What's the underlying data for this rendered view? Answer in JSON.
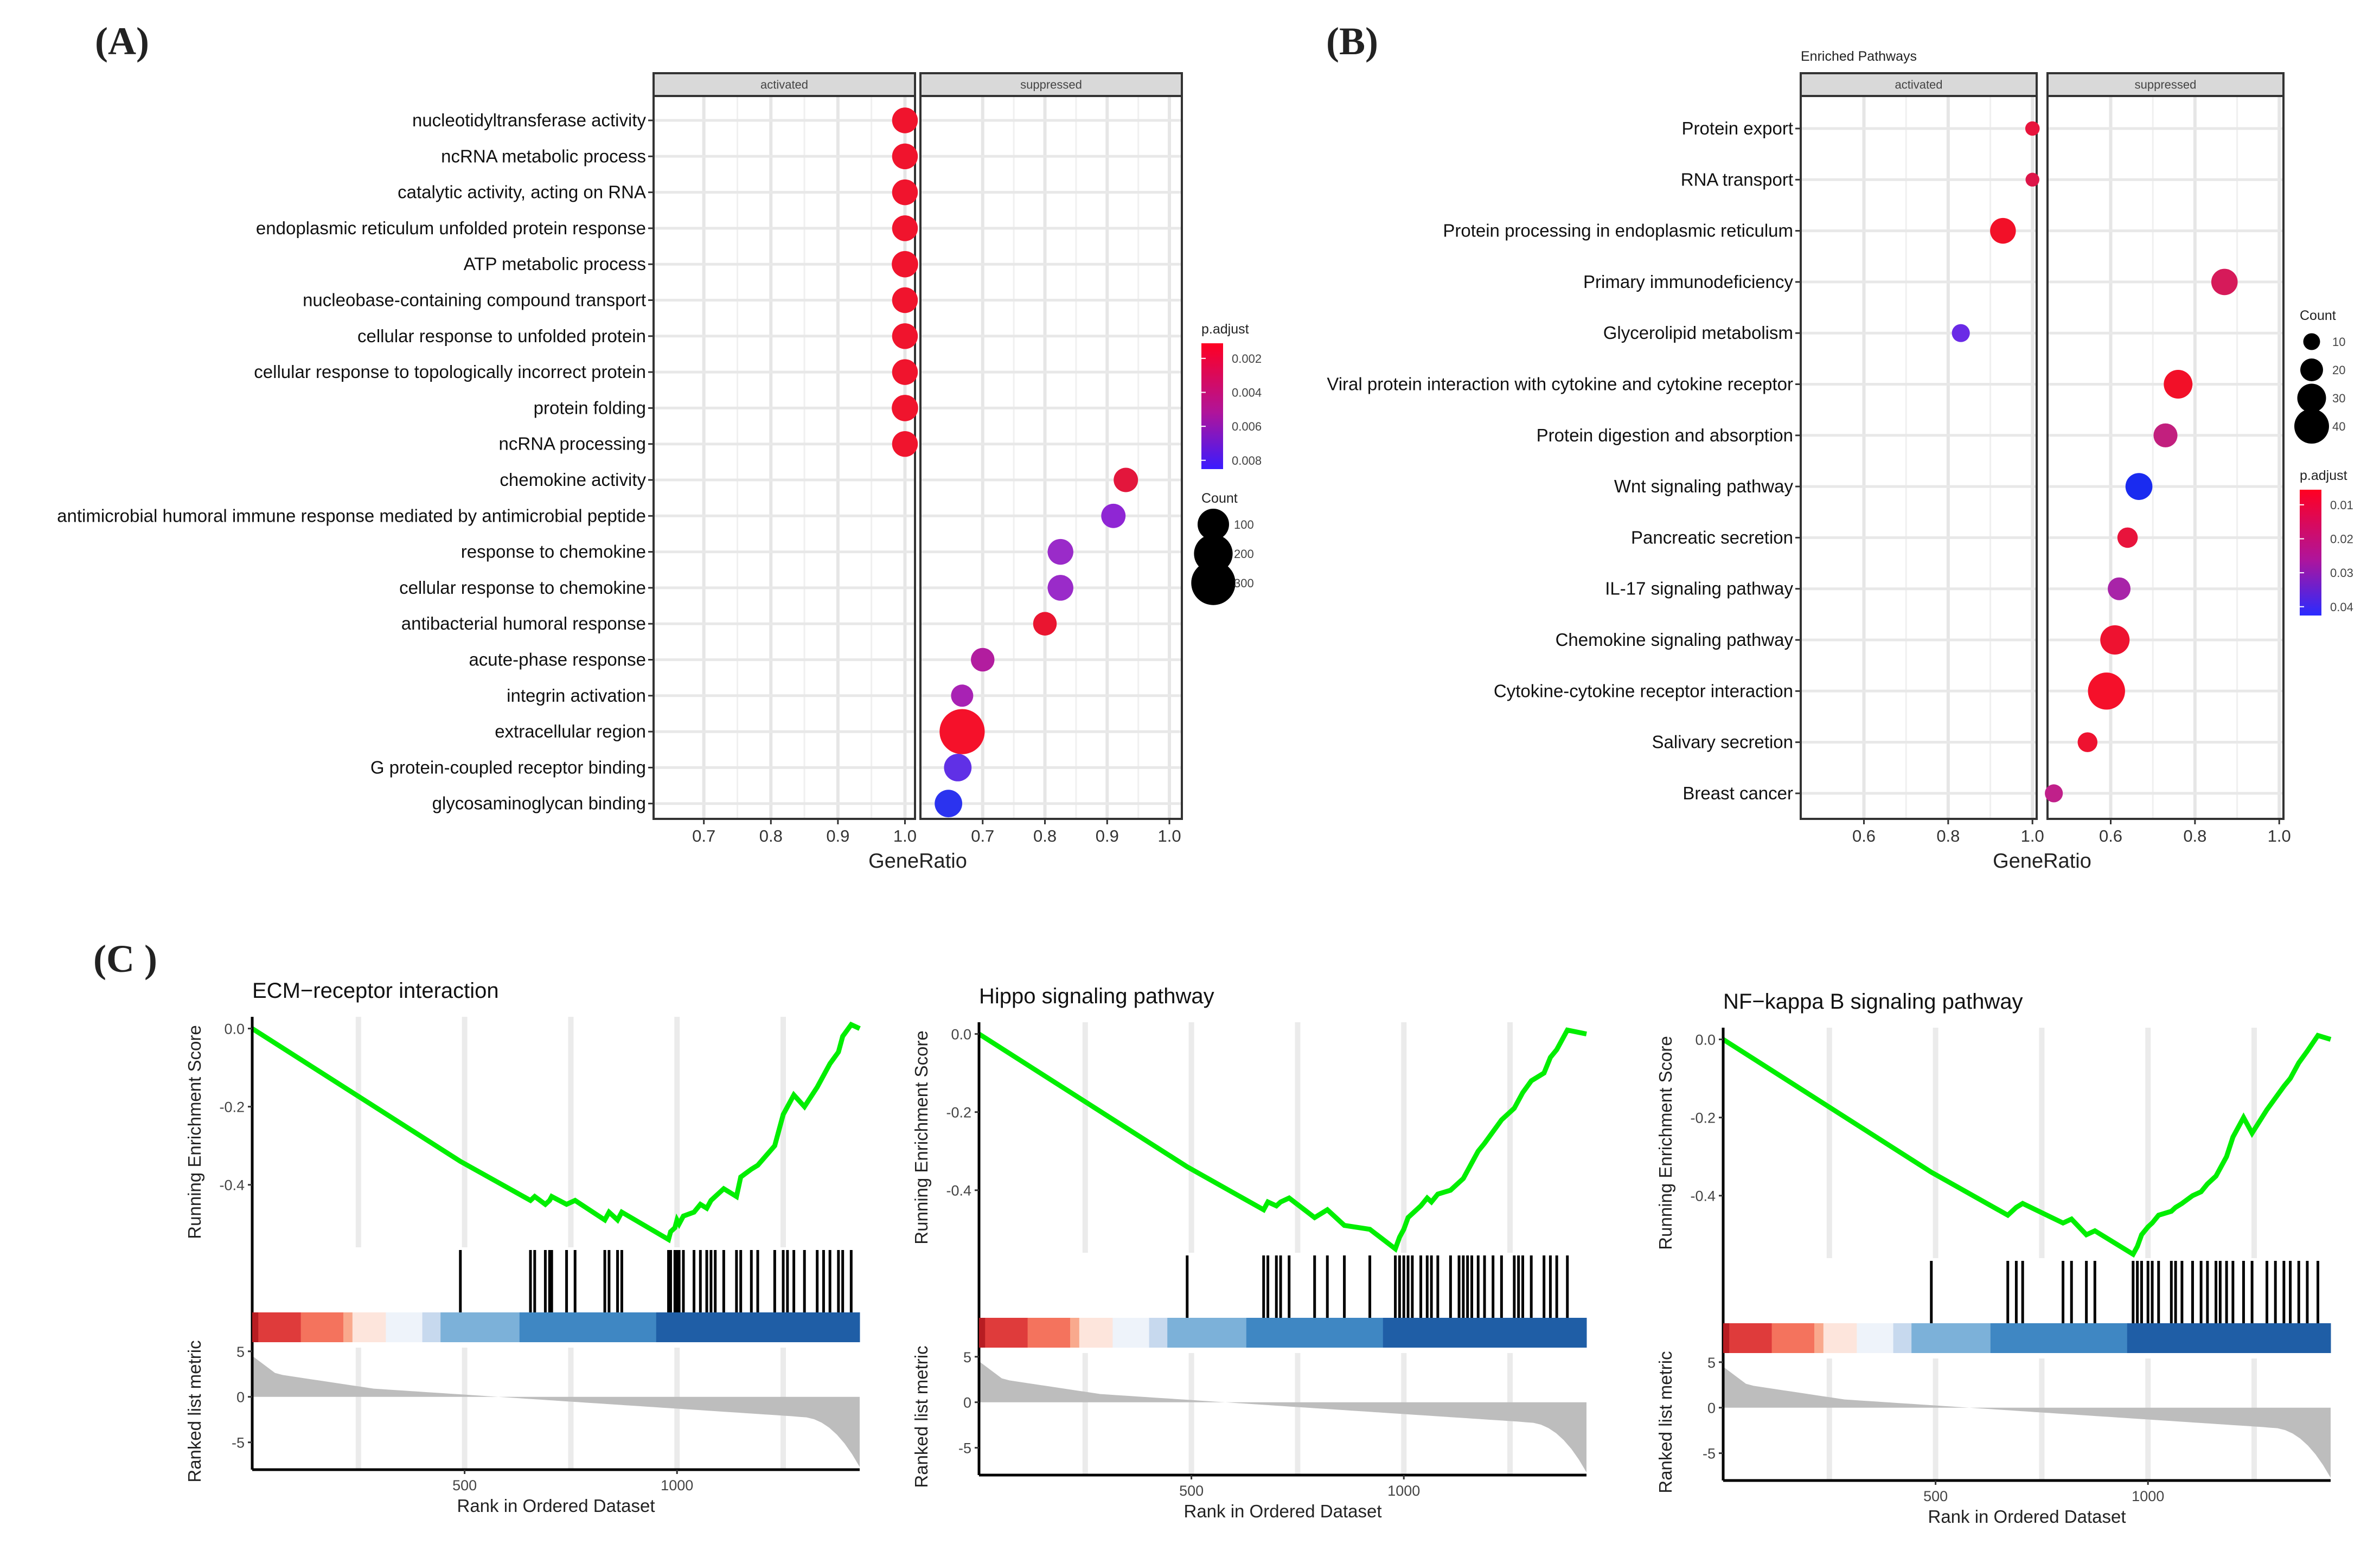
{
  "panel_labels": {
    "A": "(A)",
    "B": "(B)",
    "C": "(C )"
  },
  "chart_data": [
    {
      "id": "A",
      "type": "scatter",
      "title": "",
      "xlabel": "GeneRatio",
      "facets": [
        "activated",
        "suppressed"
      ],
      "xlim": {
        "activated": [
          0.625,
          1.015
        ],
        "suppressed": [
          0.6,
          1.02
        ]
      },
      "xticks": {
        "activated": [
          "0.7",
          "0.8",
          "0.9",
          "1.0"
        ],
        "suppressed": [
          "0.7",
          "0.8",
          "0.9",
          "1.0"
        ]
      },
      "categories": [
        "nucleotidyltransferase activity",
        "ncRNA metabolic process",
        "catalytic activity, acting on RNA",
        "endoplasmic reticulum unfolded protein response",
        "ATP metabolic process",
        "nucleobase-containing compound transport",
        "cellular response to unfolded protein",
        "cellular response to topologically incorrect protein",
        "protein folding",
        "ncRNA processing",
        "chemokine activity",
        "antimicrobial humoral immune response mediated by antimicrobial peptide",
        "response to chemokine",
        "cellular response to chemokine",
        "antibacterial humoral response",
        "acute-phase response",
        "integrin activation",
        "extracellular region",
        "G protein-coupled receptor binding",
        "glycosaminoglycan binding"
      ],
      "points": [
        {
          "category": 0,
          "facet": "activated",
          "x": 1.0,
          "count": 45,
          "color": "#f0142d"
        },
        {
          "category": 1,
          "facet": "activated",
          "x": 1.0,
          "count": 45,
          "color": "#f0142d"
        },
        {
          "category": 2,
          "facet": "activated",
          "x": 1.0,
          "count": 45,
          "color": "#f0142d"
        },
        {
          "category": 3,
          "facet": "activated",
          "x": 1.0,
          "count": 45,
          "color": "#f0142d"
        },
        {
          "category": 4,
          "facet": "activated",
          "x": 1.0,
          "count": 50,
          "color": "#f0142d"
        },
        {
          "category": 5,
          "facet": "activated",
          "x": 1.0,
          "count": 45,
          "color": "#f0142d"
        },
        {
          "category": 6,
          "facet": "activated",
          "x": 1.0,
          "count": 45,
          "color": "#f0142d"
        },
        {
          "category": 7,
          "facet": "activated",
          "x": 1.0,
          "count": 45,
          "color": "#f0142d"
        },
        {
          "category": 8,
          "facet": "activated",
          "x": 1.0,
          "count": 50,
          "color": "#f0142d"
        },
        {
          "category": 9,
          "facet": "activated",
          "x": 1.0,
          "count": 45,
          "color": "#f0142d"
        },
        {
          "category": 10,
          "facet": "suppressed",
          "x": 0.93,
          "count": 35,
          "color": "#e3163c"
        },
        {
          "category": 11,
          "facet": "suppressed",
          "x": 0.91,
          "count": 35,
          "color": "#8f26d4"
        },
        {
          "category": 12,
          "facet": "suppressed",
          "x": 0.825,
          "count": 45,
          "color": "#9a2bc9"
        },
        {
          "category": 13,
          "facet": "suppressed",
          "x": 0.825,
          "count": 45,
          "color": "#9a2bc9"
        },
        {
          "category": 14,
          "facet": "suppressed",
          "x": 0.8,
          "count": 30,
          "color": "#ea1530"
        },
        {
          "category": 15,
          "facet": "suppressed",
          "x": 0.7,
          "count": 30,
          "color": "#b21d9f"
        },
        {
          "category": 16,
          "facet": "suppressed",
          "x": 0.667,
          "count": 22,
          "color": "#a822b4"
        },
        {
          "category": 17,
          "facet": "suppressed",
          "x": 0.667,
          "count": 320,
          "color": "#f5112a"
        },
        {
          "category": 18,
          "facet": "suppressed",
          "x": 0.66,
          "count": 60,
          "color": "#6030e6"
        },
        {
          "category": 19,
          "facet": "suppressed",
          "x": 0.645,
          "count": 60,
          "color": "#2b33ef"
        }
      ],
      "legend": {
        "placement": "right",
        "color_title": "p.adjust",
        "color_labels": [
          "0.002",
          "0.004",
          "0.006",
          "0.008"
        ],
        "color_range": [
          "#ff0022",
          "#3a1bff"
        ],
        "size_title": "Count",
        "size_labels": [
          "100",
          "200",
          "300"
        ],
        "size_values": [
          100,
          200,
          300
        ]
      }
    },
    {
      "id": "B",
      "type": "scatter",
      "title": "Enriched Pathways",
      "xlabel": "GeneRatio",
      "facets": [
        "activated",
        "suppressed"
      ],
      "xlim": {
        "activated": [
          0.45,
          1.01
        ],
        "suppressed": [
          0.45,
          1.01
        ]
      },
      "xticks": {
        "activated": [
          "0.6",
          "0.8",
          "1.0"
        ],
        "suppressed": [
          "0.6",
          "0.8",
          "1.0"
        ]
      },
      "categories": [
        "Protein export",
        "RNA transport",
        "Protein processing in endoplasmic reticulum",
        "Primary immunodeficiency",
        "Glycerolipid metabolism",
        "Viral protein interaction with cytokine and cytokine receptor",
        "Protein digestion and absorption",
        "Wnt signaling pathway",
        "Pancreatic secretion",
        "IL-17 signaling pathway",
        "Chemokine signaling pathway",
        "Cytokine-cytokine receptor interaction",
        "Salivary secretion",
        "Breast cancer"
      ],
      "points": [
        {
          "category": 0,
          "facet": "activated",
          "x": 1.0,
          "count": 6,
          "color": "#e8143c"
        },
        {
          "category": 1,
          "facet": "activated",
          "x": 1.0,
          "count": 5,
          "color": "#dd1548"
        },
        {
          "category": 2,
          "facet": "activated",
          "x": 0.93,
          "count": 25,
          "color": "#f21028"
        },
        {
          "category": 3,
          "facet": "suppressed",
          "x": 0.87,
          "count": 26,
          "color": "#d61a5a"
        },
        {
          "category": 4,
          "facet": "activated",
          "x": 0.83,
          "count": 12,
          "color": "#6a2ae6"
        },
        {
          "category": 5,
          "facet": "suppressed",
          "x": 0.76,
          "count": 30,
          "color": "#f21028"
        },
        {
          "category": 6,
          "facet": "suppressed",
          "x": 0.73,
          "count": 22,
          "color": "#c21f7e"
        },
        {
          "category": 7,
          "facet": "suppressed",
          "x": 0.667,
          "count": 27,
          "color": "#1a2bf0"
        },
        {
          "category": 8,
          "facet": "suppressed",
          "x": 0.64,
          "count": 16,
          "color": "#e8143c"
        },
        {
          "category": 9,
          "facet": "suppressed",
          "x": 0.62,
          "count": 20,
          "color": "#a824a8"
        },
        {
          "category": 10,
          "facet": "suppressed",
          "x": 0.61,
          "count": 31,
          "color": "#ee1230"
        },
        {
          "category": 11,
          "facet": "suppressed",
          "x": 0.59,
          "count": 44,
          "color": "#f5102a"
        },
        {
          "category": 12,
          "facet": "suppressed",
          "x": 0.545,
          "count": 15,
          "color": "#ee1230"
        },
        {
          "category": 13,
          "facet": "suppressed",
          "x": 0.465,
          "count": 12,
          "color": "#c0208a"
        }
      ],
      "legend": {
        "placement": "right",
        "size_title": "Count",
        "size_labels": [
          "10",
          "20",
          "30",
          "40"
        ],
        "size_values": [
          10,
          20,
          30,
          40
        ],
        "color_title": "p.adjust",
        "color_labels": [
          "0.01",
          "0.02",
          "0.03",
          "0.04"
        ],
        "color_range": [
          "#ff0022",
          "#2a2bff"
        ]
      }
    },
    {
      "id": "C1",
      "type": "line",
      "title": "ECM−receptor interaction",
      "ylabel": "Running Enrichment Score",
      "ylabel2": "Ranked list metric",
      "xlabel": "Rank in Ordered Dataset",
      "xlim": [
        0,
        1430
      ],
      "ylim": [
        -0.56,
        0.03
      ],
      "yticks": [
        "0.0",
        "-0.2",
        "-0.4"
      ],
      "ytick_values": [
        0.0,
        -0.2,
        -0.4
      ],
      "metric_ylim": [
        -8,
        6
      ],
      "metric_yticks": [
        "5",
        "0",
        "-5"
      ],
      "metric_ytick_values": [
        5,
        0,
        -5
      ],
      "xticks": [
        "500",
        "1000"
      ],
      "xtick_values": [
        500,
        1000
      ],
      "hits": [
        490,
        655,
        665,
        690,
        700,
        705,
        740,
        760,
        830,
        840,
        860,
        870,
        980,
        985,
        995,
        1000,
        1005,
        1015,
        1040,
        1055,
        1070,
        1080,
        1090,
        1110,
        1140,
        1150,
        1175,
        1190,
        1230,
        1250,
        1260,
        1275,
        1300,
        1330,
        1345,
        1360,
        1380,
        1390,
        1410
      ],
      "curve": {
        "x": [
          0,
          490,
          655,
          665,
          690,
          700,
          705,
          740,
          760,
          830,
          840,
          860,
          870,
          980,
          985,
          995,
          1000,
          1005,
          1015,
          1040,
          1055,
          1070,
          1080,
          1090,
          1110,
          1140,
          1150,
          1175,
          1190,
          1230,
          1250,
          1260,
          1275,
          1300,
          1330,
          1345,
          1360,
          1380,
          1390,
          1410,
          1430
        ],
        "y": [
          0.0,
          -0.34,
          -0.44,
          -0.43,
          -0.45,
          -0.44,
          -0.43,
          -0.45,
          -0.44,
          -0.49,
          -0.47,
          -0.49,
          -0.47,
          -0.54,
          -0.52,
          -0.51,
          -0.49,
          -0.5,
          -0.48,
          -0.47,
          -0.45,
          -0.46,
          -0.44,
          -0.43,
          -0.41,
          -0.43,
          -0.38,
          -0.36,
          -0.35,
          -0.3,
          -0.22,
          -0.2,
          -0.17,
          -0.2,
          -0.15,
          -0.12,
          -0.09,
          -0.06,
          -0.02,
          0.01,
          0.0
        ]
      }
    },
    {
      "id": "C2",
      "type": "line",
      "title": "Hippo signaling pathway",
      "ylabel": "Running Enrichment Score",
      "ylabel2": "Ranked list metric",
      "xlabel": "Rank in Ordered Dataset",
      "xlim": [
        0,
        1430
      ],
      "ylim": [
        -0.56,
        0.03
      ],
      "yticks": [
        "0.0",
        "-0.2",
        "-0.4"
      ],
      "ytick_values": [
        0.0,
        -0.2,
        -0.4
      ],
      "metric_ylim": [
        -8,
        6
      ],
      "metric_yticks": [
        "5",
        "0",
        "-5"
      ],
      "metric_ytick_values": [
        5,
        0,
        -5
      ],
      "xticks": [
        "500",
        "1000"
      ],
      "xtick_values": [
        500,
        1000
      ],
      "hits": [
        490,
        670,
        680,
        700,
        710,
        730,
        790,
        820,
        860,
        920,
        980,
        990,
        1000,
        1010,
        1020,
        1040,
        1055,
        1065,
        1080,
        1110,
        1130,
        1140,
        1150,
        1160,
        1175,
        1190,
        1210,
        1230,
        1260,
        1270,
        1280,
        1300,
        1330,
        1345,
        1360,
        1385
      ],
      "curve": {
        "x": [
          0,
          490,
          670,
          680,
          700,
          710,
          730,
          790,
          820,
          860,
          920,
          980,
          990,
          1000,
          1010,
          1020,
          1040,
          1055,
          1065,
          1080,
          1110,
          1130,
          1140,
          1150,
          1160,
          1175,
          1190,
          1210,
          1230,
          1260,
          1270,
          1280,
          1300,
          1330,
          1345,
          1360,
          1385,
          1430
        ],
        "y": [
          0.0,
          -0.34,
          -0.45,
          -0.43,
          -0.44,
          -0.43,
          -0.42,
          -0.47,
          -0.45,
          -0.49,
          -0.5,
          -0.55,
          -0.52,
          -0.5,
          -0.47,
          -0.46,
          -0.44,
          -0.42,
          -0.43,
          -0.41,
          -0.4,
          -0.38,
          -0.37,
          -0.35,
          -0.33,
          -0.3,
          -0.28,
          -0.25,
          -0.22,
          -0.19,
          -0.17,
          -0.15,
          -0.12,
          -0.1,
          -0.06,
          -0.04,
          0.01,
          0.0
        ]
      }
    },
    {
      "id": "C3",
      "type": "line",
      "title": "NF−kappa B signaling pathway",
      "ylabel": "Running Enrichment Score",
      "ylabel2": "Ranked list metric",
      "xlabel": "Rank in Ordered Dataset",
      "xlim": [
        0,
        1430
      ],
      "ylim": [
        -0.56,
        0.03
      ],
      "yticks": [
        "0.0",
        "-0.2",
        "-0.4"
      ],
      "ytick_values": [
        0.0,
        -0.2,
        -0.4
      ],
      "metric_ylim": [
        -8,
        6
      ],
      "metric_yticks": [
        "5",
        "0",
        "-5"
      ],
      "metric_ytick_values": [
        5,
        0,
        -5
      ],
      "xticks": [
        "500",
        "1000"
      ],
      "xtick_values": [
        500,
        1000
      ],
      "hits": [
        490,
        670,
        690,
        705,
        800,
        820,
        855,
        875,
        965,
        975,
        985,
        1000,
        1010,
        1025,
        1055,
        1065,
        1080,
        1105,
        1125,
        1140,
        1160,
        1170,
        1185,
        1200,
        1225,
        1245,
        1280,
        1300,
        1320,
        1335,
        1355,
        1375,
        1400
      ],
      "curve": {
        "x": [
          0,
          490,
          670,
          690,
          705,
          800,
          820,
          855,
          875,
          965,
          975,
          985,
          1000,
          1010,
          1025,
          1055,
          1065,
          1080,
          1105,
          1125,
          1140,
          1160,
          1170,
          1185,
          1200,
          1225,
          1245,
          1280,
          1300,
          1320,
          1335,
          1355,
          1375,
          1400,
          1430
        ],
        "y": [
          0.0,
          -0.34,
          -0.45,
          -0.43,
          -0.42,
          -0.47,
          -0.46,
          -0.5,
          -0.49,
          -0.55,
          -0.53,
          -0.5,
          -0.48,
          -0.47,
          -0.45,
          -0.44,
          -0.43,
          -0.42,
          -0.4,
          -0.39,
          -0.37,
          -0.35,
          -0.33,
          -0.3,
          -0.25,
          -0.2,
          -0.24,
          -0.18,
          -0.15,
          -0.12,
          -0.1,
          -0.06,
          -0.03,
          0.01,
          0.0
        ]
      }
    }
  ]
}
